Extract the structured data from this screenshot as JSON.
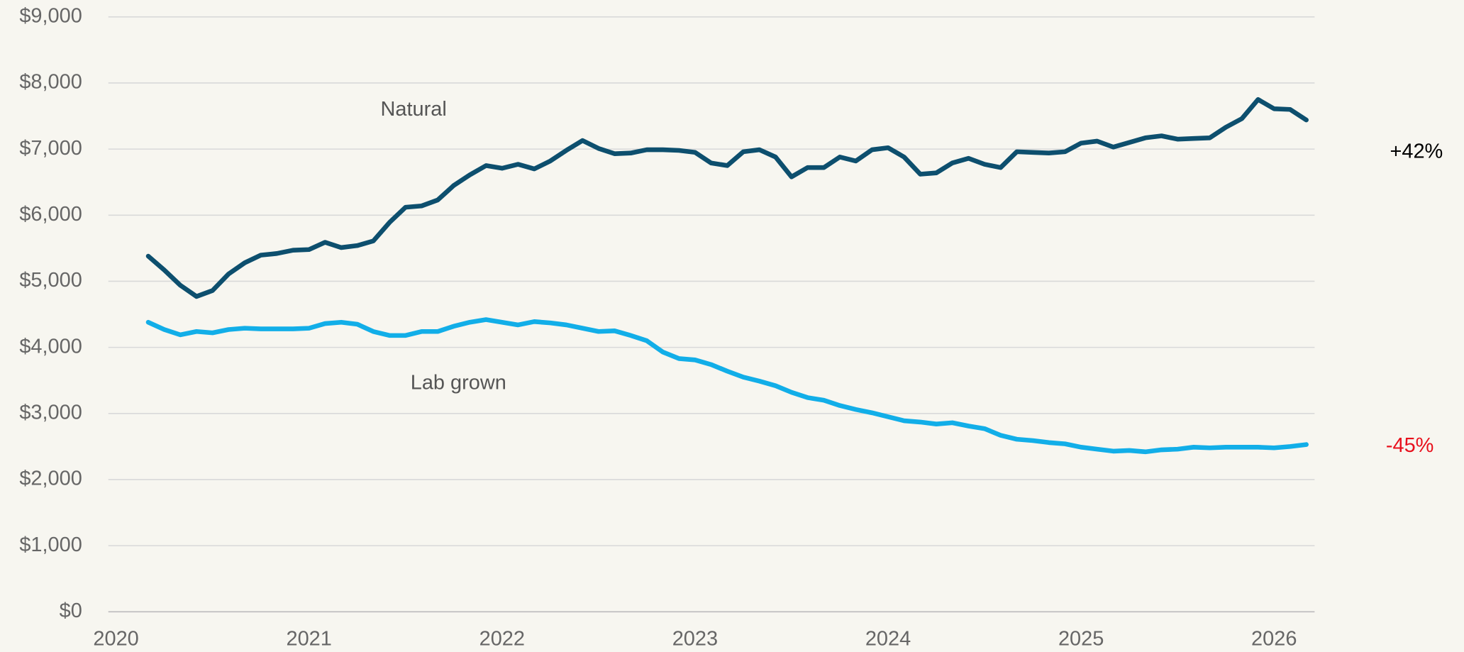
{
  "chart_data": {
    "type": "line",
    "x": [
      2020.167,
      2020.25,
      2020.333,
      2020.417,
      2020.5,
      2020.583,
      2020.667,
      2020.75,
      2020.833,
      2020.917,
      2021,
      2021.083,
      2021.167,
      2021.25,
      2021.333,
      2021.417,
      2021.5,
      2021.583,
      2021.667,
      2021.75,
      2021.833,
      2021.917,
      2022,
      2022.083,
      2022.167,
      2022.25,
      2022.333,
      2022.417,
      2022.5,
      2022.583,
      2022.667,
      2022.75,
      2022.833,
      2022.917,
      2023,
      2023.083,
      2023.167,
      2023.25,
      2023.333,
      2023.417,
      2023.5,
      2023.583,
      2023.667,
      2023.75,
      2023.833,
      2023.917,
      2024,
      2024.083,
      2024.167,
      2024.25,
      2024.333,
      2024.417,
      2024.5,
      2024.583,
      2024.667,
      2024.75,
      2024.833,
      2024.917,
      2025,
      2025.083,
      2025.167,
      2025.25,
      2025.333,
      2025.417,
      2025.5,
      2025.583,
      2025.667,
      2025.75,
      2025.833,
      2025.917,
      2026,
      2026.083,
      2026.167
    ],
    "series": [
      {
        "name": "Natural",
        "color": "#0d4f6e",
        "values": [
          5380,
          5170,
          4940,
          4770,
          4860,
          5110,
          5280,
          5395,
          5420,
          5470,
          5480,
          5590,
          5510,
          5540,
          5610,
          5890,
          6120,
          6140,
          6230,
          6450,
          6610,
          6750,
          6710,
          6770,
          6700,
          6820,
          6980,
          7130,
          7010,
          6930,
          6940,
          6990,
          6990,
          6980,
          6950,
          6790,
          6750,
          6960,
          6990,
          6880,
          6580,
          6720,
          6720,
          6880,
          6820,
          6990,
          7020,
          6880,
          6620,
          6640,
          6790,
          6860,
          6770,
          6720,
          6960,
          6950,
          6940,
          6960,
          7090,
          7120,
          7030,
          7100,
          7170,
          7200,
          7150,
          7160,
          7170,
          7330,
          7460,
          7750,
          7610,
          7600,
          7440
        ]
      },
      {
        "name": "Lab grown",
        "color": "#12aee8",
        "values": [
          4380,
          4270,
          4190,
          4240,
          4220,
          4270,
          4290,
          4280,
          4280,
          4280,
          4290,
          4360,
          4380,
          4350,
          4240,
          4180,
          4180,
          4240,
          4240,
          4320,
          4380,
          4420,
          4380,
          4340,
          4390,
          4370,
          4340,
          4290,
          4240,
          4250,
          4180,
          4100,
          3930,
          3830,
          3810,
          3740,
          3640,
          3550,
          3490,
          3420,
          3320,
          3240,
          3200,
          3120,
          3060,
          3010,
          2950,
          2890,
          2870,
          2840,
          2860,
          2810,
          2770,
          2670,
          2610,
          2590,
          2560,
          2540,
          2490,
          2460,
          2430,
          2440,
          2420,
          2450,
          2460,
          2490,
          2480,
          2490,
          2490,
          2490,
          2480,
          2500,
          2530
        ]
      }
    ],
    "annotations": [
      {
        "text": "+42%",
        "color": "#000000"
      },
      {
        "text": "-45%",
        "color": "#e8101c"
      }
    ],
    "xlim": [
      2019.96,
      2026.21
    ],
    "xticks": [
      2020,
      2021,
      2022,
      2023,
      2024,
      2025,
      2026
    ],
    "ylim": [
      0,
      9000
    ],
    "yticks": [
      {
        "value": 0,
        "label": "$0"
      },
      {
        "value": 1000,
        "label": "$1,000"
      },
      {
        "value": 2000,
        "label": "$2,000"
      },
      {
        "value": 3000,
        "label": "$3,000"
      },
      {
        "value": 4000,
        "label": "$4,000"
      },
      {
        "value": 5000,
        "label": "$5,000"
      },
      {
        "value": 6000,
        "label": "$6,000"
      },
      {
        "value": 7000,
        "label": "$7,000"
      },
      {
        "value": 8000,
        "label": "$8,000"
      },
      {
        "value": 9000,
        "label": "$9,000"
      }
    ],
    "grid": true
  }
}
